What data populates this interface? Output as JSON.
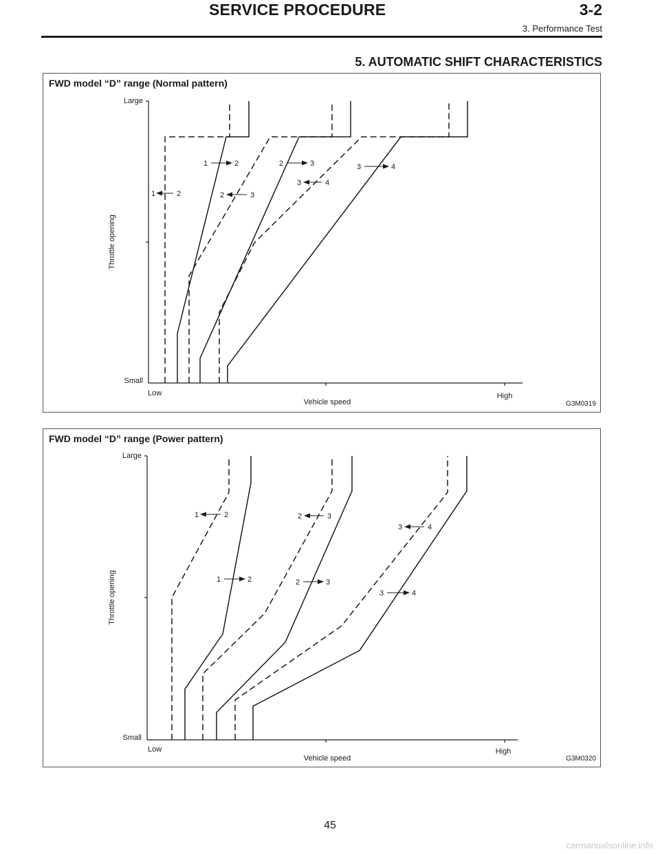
{
  "header": {
    "title": "SERVICE PROCEDURE",
    "code": "3-2",
    "subtitle": "3. Performance Test"
  },
  "section": {
    "title": "5. AUTOMATIC SHIFT CHARACTERISTICS"
  },
  "figures": [
    {
      "caption": "FWD model “D” range (Normal pattern)",
      "code": "G3M0319",
      "axis": {
        "y_label": "Throttle opening",
        "y_top": "Large",
        "y_bottom": "Small",
        "x_label": "Vehicle speed",
        "x_left": "Low",
        "x_right": "High"
      },
      "shift_labels": [
        {
          "from": "1",
          "to": "2",
          "dir": "up"
        },
        {
          "from": "1",
          "to": "2",
          "dir": "down"
        },
        {
          "from": "2",
          "to": "3",
          "dir": "up"
        },
        {
          "from": "2",
          "to": "3",
          "dir": "down"
        },
        {
          "from": "3",
          "to": "4",
          "dir": "up"
        },
        {
          "from": "3",
          "to": "4",
          "dir": "down"
        }
      ]
    },
    {
      "caption": "FWD model “D” range (Power pattern)",
      "code": "G3M0320",
      "axis": {
        "y_label": "Throttle opening",
        "y_top": "Large",
        "y_bottom": "Small",
        "x_label": "Vehicle speed",
        "x_left": "Low",
        "x_right": "High"
      },
      "shift_labels": [
        {
          "from": "1",
          "to": "2",
          "dir": "down"
        },
        {
          "from": "1",
          "to": "2",
          "dir": "up"
        },
        {
          "from": "2",
          "to": "3",
          "dir": "down"
        },
        {
          "from": "2",
          "to": "3",
          "dir": "up"
        },
        {
          "from": "3",
          "to": "4",
          "dir": "down"
        },
        {
          "from": "3",
          "to": "4",
          "dir": "up"
        }
      ]
    }
  ],
  "page_number": "45",
  "watermark": "carmanualsonline.info"
}
